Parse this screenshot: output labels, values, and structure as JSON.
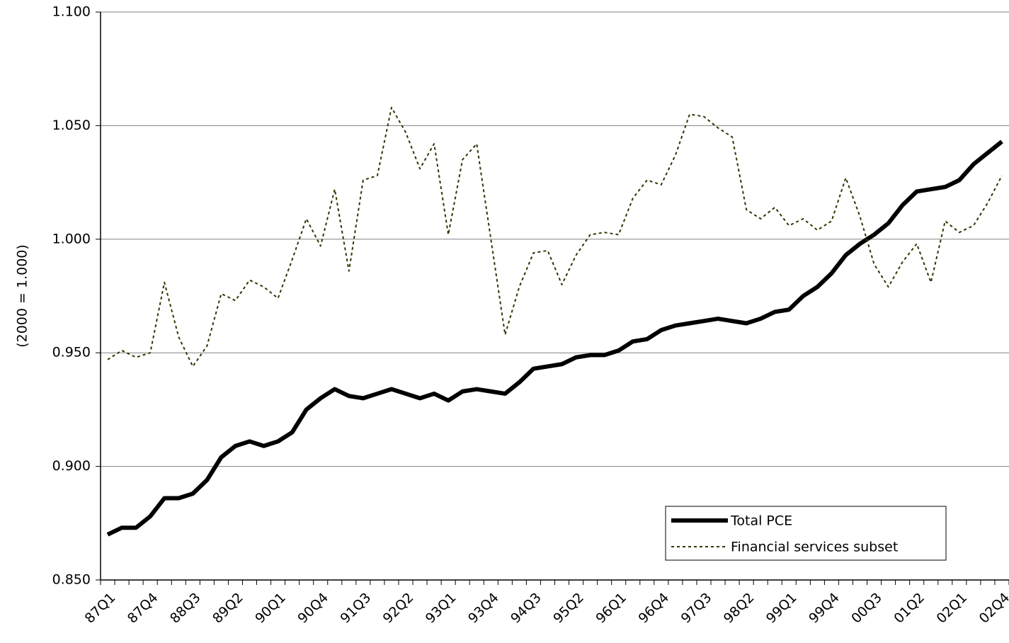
{
  "chart_data": {
    "type": "line",
    "y_label": "(2000 = 1.000)",
    "categories": [
      "87Q1",
      null,
      null,
      "87Q4",
      null,
      null,
      "88Q3",
      null,
      null,
      "89Q2",
      null,
      null,
      "90Q1",
      null,
      null,
      "90Q4",
      null,
      null,
      "91Q3",
      null,
      null,
      "92Q2",
      null,
      null,
      "93Q1",
      null,
      null,
      "93Q4",
      null,
      null,
      "94Q3",
      null,
      null,
      "95Q2",
      null,
      null,
      "96Q1",
      null,
      null,
      "96Q4",
      null,
      null,
      "97Q3",
      null,
      null,
      "98Q2",
      null,
      null,
      "99Q1",
      null,
      null,
      "99Q4",
      null,
      null,
      "00Q3",
      null,
      null,
      "01Q2",
      null,
      null,
      "02Q1",
      null,
      null,
      "02Q4"
    ],
    "series": [
      {
        "name": "Total PCE",
        "color": "#000000",
        "style": "solid",
        "values": [
          0.87,
          0.873,
          0.873,
          0.878,
          0.886,
          0.886,
          0.888,
          0.894,
          0.904,
          0.909,
          0.911,
          0.909,
          0.911,
          0.915,
          0.925,
          0.93,
          0.934,
          0.931,
          0.93,
          0.932,
          0.934,
          0.932,
          0.93,
          0.932,
          0.929,
          0.933,
          0.934,
          0.933,
          0.932,
          0.937,
          0.943,
          0.944,
          0.945,
          0.948,
          0.949,
          0.949,
          0.951,
          0.955,
          0.956,
          0.96,
          0.962,
          0.963,
          0.964,
          0.965,
          0.964,
          0.963,
          0.965,
          0.968,
          0.969,
          0.975,
          0.979,
          0.985,
          0.993,
          0.998,
          1.002,
          1.007,
          1.015,
          1.021,
          1.022,
          1.023,
          1.026,
          1.033,
          1.038,
          1.043
        ]
      },
      {
        "name": "Financial services subset",
        "color": "#333300",
        "style": "dotted",
        "values": [
          0.947,
          0.951,
          0.948,
          0.95,
          0.981,
          0.957,
          0.944,
          0.953,
          0.976,
          0.973,
          0.982,
          0.979,
          0.974,
          0.991,
          1.009,
          0.997,
          1.022,
          0.986,
          1.026,
          1.028,
          1.058,
          1.047,
          1.031,
          1.042,
          1.002,
          1.035,
          1.042,
          1.0,
          0.958,
          0.979,
          0.994,
          0.995,
          0.98,
          0.993,
          1.002,
          1.003,
          1.002,
          1.018,
          1.026,
          1.024,
          1.037,
          1.055,
          1.054,
          1.049,
          1.045,
          1.013,
          1.009,
          1.014,
          1.006,
          1.009,
          1.004,
          1.008,
          1.027,
          1.01,
          0.989,
          0.979,
          0.99,
          0.998,
          0.981,
          1.008,
          1.003,
          1.006,
          1.016,
          1.028
        ]
      }
    ],
    "ylim": [
      0.85,
      1.1
    ],
    "yticks": [
      {
        "value": 0.85,
        "label": "0.850"
      },
      {
        "value": 0.9,
        "label": "0.900"
      },
      {
        "value": 0.95,
        "label": "0.950"
      },
      {
        "value": 1.0,
        "label": "1.000"
      },
      {
        "value": 1.05,
        "label": "1.050"
      },
      {
        "value": 1.1,
        "label": "1.100"
      }
    ],
    "grid": true
  }
}
